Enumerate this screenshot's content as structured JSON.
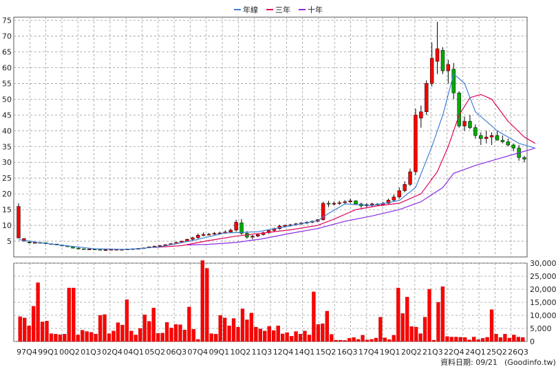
{
  "chart_data": [
    {
      "type": "candlestick",
      "legend": [
        {
          "name": "年線",
          "color": "#3d7dd6"
        },
        {
          "name": "三年",
          "color": "#e0005a"
        },
        {
          "name": "十年",
          "color": "#8a2be2"
        }
      ],
      "grid": true,
      "legend_position": "top-center",
      "y_ticks": [
        "5",
        "10",
        "15",
        "20",
        "25",
        "30",
        "35",
        "40",
        "45",
        "50",
        "55",
        "60",
        "65",
        "70",
        "75"
      ],
      "ylim": [
        0,
        76
      ],
      "colors": {
        "up": "#ff0000",
        "down": "#00aa00",
        "wick": "#000000"
      },
      "candles": [
        [
          17.0,
          6.0,
          6.0,
          16.0
        ],
        [
          6.0,
          5.0,
          5.0,
          5.8
        ],
        [
          5.0,
          4.3,
          4.7,
          4.5
        ],
        [
          4.6,
          4.3,
          4.4,
          4.6
        ],
        [
          4.7,
          4.3,
          4.6,
          4.5
        ],
        [
          4.5,
          4.1,
          4.5,
          4.2
        ],
        [
          4.3,
          4.0,
          4.2,
          4.1
        ],
        [
          4.1,
          3.7,
          4.1,
          3.8
        ],
        [
          3.8,
          3.4,
          3.8,
          3.5
        ],
        [
          3.7,
          3.2,
          3.5,
          3.3
        ],
        [
          3.3,
          2.7,
          3.2,
          2.8
        ],
        [
          3.0,
          2.5,
          2.8,
          2.6
        ],
        [
          2.7,
          2.4,
          2.6,
          2.5
        ],
        [
          2.6,
          2.3,
          2.4,
          2.5
        ],
        [
          2.6,
          2.3,
          2.5,
          2.4
        ],
        [
          2.5,
          2.2,
          2.4,
          2.3
        ],
        [
          2.4,
          2.2,
          2.3,
          2.3
        ],
        [
          2.4,
          2.2,
          2.3,
          2.4
        ],
        [
          2.5,
          2.3,
          2.4,
          2.4
        ],
        [
          2.5,
          2.3,
          2.4,
          2.4
        ],
        [
          2.6,
          2.4,
          2.4,
          2.5
        ],
        [
          2.7,
          2.4,
          2.5,
          2.6
        ],
        [
          2.8,
          2.5,
          2.6,
          2.7
        ],
        [
          3.0,
          2.6,
          2.7,
          2.9
        ],
        [
          3.3,
          2.8,
          2.9,
          3.2
        ],
        [
          3.6,
          3.0,
          3.2,
          3.4
        ],
        [
          3.8,
          3.3,
          3.4,
          3.6
        ],
        [
          4.0,
          3.5,
          3.6,
          3.9
        ],
        [
          4.4,
          3.8,
          3.9,
          4.2
        ],
        [
          4.8,
          4.1,
          4.2,
          4.6
        ],
        [
          5.2,
          4.4,
          4.6,
          5.0
        ],
        [
          5.8,
          4.8,
          5.0,
          5.6
        ],
        [
          6.4,
          5.3,
          5.6,
          6.1
        ],
        [
          7.4,
          5.8,
          6.1,
          6.9
        ],
        [
          7.8,
          6.5,
          6.9,
          7.1
        ],
        [
          7.6,
          6.8,
          7.1,
          7.2
        ],
        [
          7.9,
          7.0,
          7.2,
          7.5
        ],
        [
          8.0,
          7.2,
          7.5,
          7.6
        ],
        [
          8.4,
          7.3,
          7.6,
          7.9
        ],
        [
          9.0,
          7.7,
          7.9,
          8.5
        ],
        [
          11.8,
          8.0,
          8.5,
          11.0
        ],
        [
          12.0,
          7.0,
          10.8,
          7.5
        ],
        [
          8.2,
          5.8,
          7.5,
          6.3
        ],
        [
          7.0,
          5.6,
          6.3,
          6.6
        ],
        [
          7.5,
          6.3,
          6.6,
          7.1
        ],
        [
          8.0,
          6.8,
          7.1,
          7.7
        ],
        [
          8.6,
          7.3,
          7.7,
          8.4
        ],
        [
          9.3,
          8.0,
          8.4,
          9.0
        ],
        [
          10.2,
          8.6,
          9.0,
          9.8
        ],
        [
          10.3,
          9.3,
          9.8,
          10.0
        ],
        [
          10.5,
          9.6,
          10.0,
          10.2
        ],
        [
          10.8,
          9.9,
          10.2,
          10.5
        ],
        [
          11.0,
          10.1,
          10.5,
          10.8
        ],
        [
          11.3,
          10.4,
          10.8,
          11.0
        ],
        [
          11.6,
          10.7,
          11.0,
          11.3
        ],
        [
          12.0,
          11.0,
          11.3,
          11.8
        ],
        [
          17.5,
          11.5,
          11.8,
          17.0
        ],
        [
          17.8,
          15.8,
          17.0,
          16.8
        ],
        [
          17.6,
          16.3,
          16.8,
          17.0
        ],
        [
          17.8,
          16.5,
          17.0,
          17.2
        ],
        [
          18.0,
          16.8,
          17.2,
          17.5
        ],
        [
          18.5,
          17.0,
          17.5,
          17.8
        ],
        [
          18.0,
          16.5,
          17.8,
          16.8
        ],
        [
          17.2,
          15.5,
          16.8,
          16.2
        ],
        [
          17.0,
          15.8,
          16.2,
          16.6
        ],
        [
          17.2,
          16.0,
          16.6,
          16.8
        ],
        [
          17.0,
          16.2,
          16.8,
          16.5
        ],
        [
          17.5,
          16.2,
          16.5,
          17.0
        ],
        [
          18.5,
          16.8,
          17.0,
          18.0
        ],
        [
          19.8,
          17.6,
          18.0,
          19.0
        ],
        [
          22.0,
          18.5,
          19.0,
          21.0
        ],
        [
          24.0,
          20.5,
          21.0,
          23.0
        ],
        [
          28.0,
          22.5,
          23.0,
          27.0
        ],
        [
          47.0,
          26.0,
          27.0,
          45.0
        ],
        [
          48.0,
          41.0,
          44.0,
          46.0
        ],
        [
          56.0,
          45.0,
          46.0,
          55.0
        ],
        [
          68.0,
          54.0,
          55.0,
          63.0
        ],
        [
          74.5,
          58.0,
          62.0,
          66.0
        ],
        [
          66.5,
          58.0,
          65.5,
          59.0
        ],
        [
          62.5,
          55.0,
          59.0,
          61.0
        ],
        [
          61.5,
          50.0,
          59.5,
          52.0
        ],
        [
          52.5,
          41.0,
          52.0,
          41.5
        ],
        [
          44.5,
          40.0,
          41.5,
          43.0
        ],
        [
          45.0,
          40.5,
          43.0,
          41.0
        ],
        [
          42.0,
          37.5,
          41.0,
          38.5
        ],
        [
          39.5,
          35.5,
          38.5,
          37.5
        ],
        [
          40.0,
          36.0,
          37.5,
          38.0
        ],
        [
          39.5,
          35.5,
          38.0,
          38.5
        ],
        [
          40.0,
          37.0,
          38.5,
          37.0
        ],
        [
          38.5,
          36.0,
          37.0,
          36.5
        ],
        [
          37.5,
          35.0,
          36.5,
          35.5
        ],
        [
          36.0,
          33.5,
          35.5,
          34.5
        ],
        [
          35.5,
          30.5,
          34.5,
          31.5
        ],
        [
          32.0,
          30.0,
          31.5,
          31.0
        ]
      ],
      "ma_year": [
        [
          0,
          5.5
        ],
        [
          4,
          4.5
        ],
        [
          9,
          3.5
        ],
        [
          14,
          2.6
        ],
        [
          20,
          2.4
        ],
        [
          26,
          3.2
        ],
        [
          32,
          5.2
        ],
        [
          38,
          7.6
        ],
        [
          44,
          8.0
        ],
        [
          50,
          9.9
        ],
        [
          55,
          11.5
        ],
        [
          57,
          13.8
        ],
        [
          60,
          16.8
        ],
        [
          65,
          16.3
        ],
        [
          70,
          17.9
        ],
        [
          73,
          22.0
        ],
        [
          76,
          35.0
        ],
        [
          78,
          45.0
        ],
        [
          80,
          58.0
        ],
        [
          82,
          55.0
        ],
        [
          84,
          46.0
        ],
        [
          88,
          40.0
        ],
        [
          92,
          36.0
        ],
        [
          95,
          34.5
        ]
      ],
      "ma_3y": [
        [
          25,
          3.0
        ],
        [
          30,
          3.6
        ],
        [
          35,
          5.2
        ],
        [
          40,
          6.6
        ],
        [
          45,
          7.6
        ],
        [
          50,
          8.6
        ],
        [
          55,
          10.0
        ],
        [
          58,
          12.0
        ],
        [
          62,
          15.0
        ],
        [
          66,
          16.2
        ],
        [
          70,
          17.0
        ],
        [
          74,
          20.0
        ],
        [
          77,
          27.0
        ],
        [
          79,
          35.0
        ],
        [
          81,
          45.0
        ],
        [
          83,
          50.5
        ],
        [
          85,
          51.5
        ],
        [
          87,
          50.0
        ],
        [
          90,
          43.0
        ],
        [
          93,
          38.0
        ],
        [
          95,
          36.0
        ]
      ],
      "ma_10y": [
        [
          31,
          3.8
        ],
        [
          35,
          4.0
        ],
        [
          40,
          4.6
        ],
        [
          45,
          5.8
        ],
        [
          50,
          7.5
        ],
        [
          55,
          9.0
        ],
        [
          60,
          11.3
        ],
        [
          65,
          13.0
        ],
        [
          70,
          15.0
        ],
        [
          74,
          17.5
        ],
        [
          78,
          22.0
        ],
        [
          80,
          26.5
        ],
        [
          84,
          29.0
        ],
        [
          88,
          31.0
        ],
        [
          92,
          33.0
        ],
        [
          95,
          34.5
        ]
      ]
    },
    {
      "type": "bar",
      "x_ticks": [
        "97Q4",
        "99Q1",
        "00Q2",
        "01Q3",
        "02Q4",
        "04Q1",
        "05Q2",
        "06Q3",
        "07Q4",
        "09Q1",
        "10Q2",
        "11Q3",
        "12Q4",
        "14Q1",
        "15Q2",
        "16Q3",
        "17Q4",
        "19Q1",
        "20Q2",
        "21Q3",
        "22Q4",
        "24Q1",
        "25Q2",
        "26Q3"
      ],
      "y_ticks": [
        "0",
        "5,000",
        "10,000",
        "15,000",
        "20,000",
        "25,000",
        "30,000"
      ],
      "ylim": [
        0,
        30000
      ],
      "values": [
        9500,
        9000,
        6000,
        13500,
        22500,
        7500,
        7800,
        3000,
        2800,
        2600,
        2800,
        20500,
        20500,
        2500,
        4300,
        3800,
        3500,
        2800,
        10000,
        10300,
        3000,
        4000,
        7200,
        6300,
        16000,
        4000,
        2500,
        5000,
        10200,
        7700,
        12800,
        3100,
        3200,
        7300,
        5200,
        6500,
        6400,
        4400,
        13200,
        4700,
        800,
        31000,
        28000,
        3000,
        2800,
        10000,
        9000,
        6000,
        8800,
        5500,
        12500,
        8300,
        10900,
        5500,
        4800,
        4000,
        5800,
        4200,
        6000,
        2900,
        3400,
        2000,
        3800,
        2800,
        4000,
        2500,
        19000,
        6500,
        6800,
        11600,
        2700,
        500,
        500,
        400,
        1200,
        1500,
        800,
        2400,
        600,
        800,
        1300,
        9300,
        1400,
        700,
        2400,
        20500,
        10700,
        17000,
        5700,
        5500,
        3000,
        9300,
        20000,
        500,
        15000,
        21000,
        1900,
        1700,
        1700,
        1600,
        1500,
        600,
        1700,
        700,
        1200,
        1600,
        12200,
        2800,
        1500,
        2800,
        1300,
        2500,
        1700,
        1500
      ]
    }
  ],
  "footer": {
    "date_label": "資料日期: 09/21",
    "source": "(Goodinfo.tw)"
  }
}
